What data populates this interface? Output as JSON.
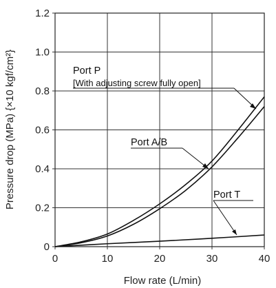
{
  "chart_data": {
    "type": "line",
    "xlabel": "Flow rate (L/min)",
    "ylabel": "Pressure drop (MPa) {×10 kgf/cm²}",
    "xlim": [
      0,
      40
    ],
    "ylim": [
      0,
      1.2
    ],
    "x_ticks": [
      "0",
      "10",
      "20",
      "30",
      "40"
    ],
    "y_ticks": [
      "0",
      "0.2",
      "0.4",
      "0.6",
      "0.8",
      "1.0",
      "1.2"
    ],
    "grid": true,
    "series": [
      {
        "name": "Port P",
        "note": "[With adjusting screw fully open]",
        "x": [
          0,
          5,
          10,
          15,
          20,
          25,
          30,
          35,
          40
        ],
        "y": [
          0,
          0.025,
          0.065,
          0.135,
          0.22,
          0.32,
          0.44,
          0.6,
          0.77
        ]
      },
      {
        "name": "Port A/B",
        "x": [
          0,
          5,
          10,
          15,
          20,
          25,
          30,
          35,
          40
        ],
        "y": [
          0,
          0.02,
          0.055,
          0.115,
          0.195,
          0.29,
          0.41,
          0.56,
          0.72
        ]
      },
      {
        "name": "Port T",
        "x": [
          0,
          10,
          20,
          30,
          40
        ],
        "y": [
          0,
          0.015,
          0.028,
          0.043,
          0.06
        ]
      }
    ]
  }
}
